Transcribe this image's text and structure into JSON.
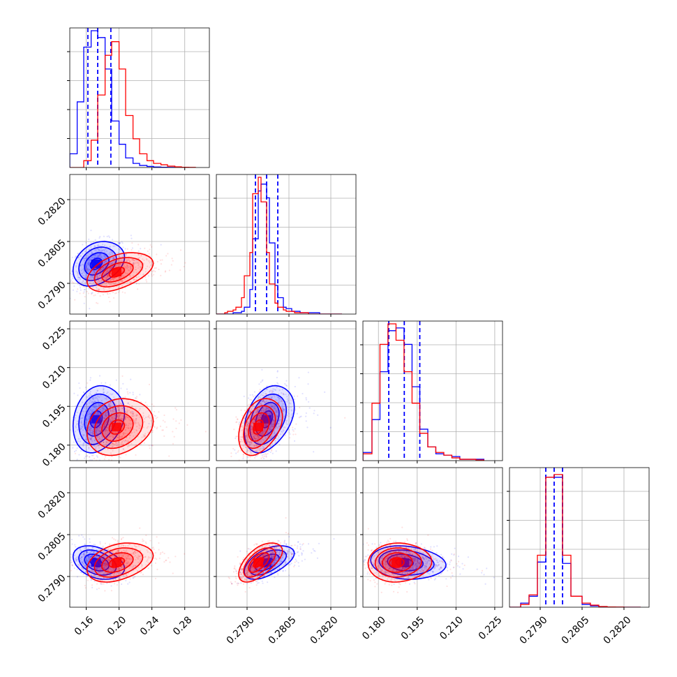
{
  "chart_data": {
    "type": "corner",
    "description_colors": {
      "blue": "#0000ff",
      "red": "#ff0000"
    },
    "grid": true,
    "legend": "none",
    "parameters": [
      {
        "range": [
          0.14,
          0.31
        ],
        "ticks": [
          0.16,
          0.2,
          0.24,
          0.28
        ],
        "tick_labels": [
          "0.16",
          "0.20",
          "0.24",
          "0.28"
        ]
      },
      {
        "range": [
          0.2779,
          0.2829
        ],
        "ticks": [
          0.279,
          0.2805,
          0.282
        ],
        "tick_labels": [
          "0.2790",
          "0.2805",
          "0.2820"
        ]
      },
      {
        "range": [
          0.174,
          0.228
        ],
        "ticks": [
          0.18,
          0.195,
          0.21,
          0.225
        ],
        "tick_labels": [
          "0.180",
          "0.195",
          "0.210",
          "0.225"
        ]
      },
      {
        "range": [
          0.2779,
          0.2829
        ],
        "ticks": [
          0.279,
          0.2805,
          0.282
        ],
        "tick_labels": [
          "0.2790",
          "0.2805",
          "0.2820"
        ]
      }
    ],
    "series": [
      {
        "color": "#0000ff",
        "means": [
          0.172,
          0.2797,
          0.19,
          0.2795
        ],
        "sigmas": [
          0.014,
          0.0004,
          0.0065,
          0.0003
        ],
        "correlations": [
          [
            0,
            1,
            0.3
          ],
          [
            0,
            2,
            0.2
          ],
          [
            0,
            3,
            -0.35
          ],
          [
            1,
            2,
            0.35
          ],
          [
            1,
            3,
            0.55
          ],
          [
            2,
            3,
            -0.15
          ]
        ],
        "quantiles": [
          [
            0.162,
            0.174,
            0.19
          ],
          [
            0.2793,
            0.2797,
            0.2801
          ],
          [
            0.184,
            0.19,
            0.196
          ],
          [
            0.2792,
            0.2795,
            0.2798
          ]
        ],
        "histograms": [
          {
            "edges": [
              0.14,
              0.149,
              0.157,
              0.166,
              0.174,
              0.183,
              0.191,
              0.2,
              0.208,
              0.217,
              0.225,
              0.234,
              0.242,
              0.251,
              0.259,
              0.268
            ],
            "counts": [
              0.1,
              0.48,
              0.88,
              1.0,
              0.95,
              0.72,
              0.34,
              0.17,
              0.07,
              0.03,
              0.015,
              0.008,
              0.004,
              0.002,
              0.001
            ]
          },
          {
            "edges": [
              0.2779,
              0.278,
              0.2782,
              0.2783,
              0.2785,
              0.2786,
              0.2788,
              0.2789,
              0.2791,
              0.2792,
              0.2794,
              0.2795,
              0.2797,
              0.2798,
              0.28,
              0.2801,
              0.2803,
              0.2804,
              0.2806,
              0.2807,
              0.2809,
              0.2812,
              0.2816,
              0.2824
            ],
            "counts": [
              0.0,
              0.0,
              0.0,
              0.0,
              0.01,
              0.01,
              0.02,
              0.05,
              0.18,
              0.55,
              0.9,
              0.95,
              0.85,
              0.52,
              0.21,
              0.12,
              0.05,
              0.04,
              0.02,
              0.02,
              0.01,
              0.01,
              0.0
            ]
          },
          {
            "edges": [
              0.174,
              0.1775,
              0.1806,
              0.1837,
              0.1868,
              0.1899,
              0.193,
              0.196,
              0.1991,
              0.2022,
              0.2053,
              0.2084,
              0.2115,
              0.2146,
              0.2177,
              0.2208
            ],
            "counts": [
              0.06,
              0.3,
              0.65,
              0.95,
              0.97,
              0.85,
              0.54,
              0.23,
              0.1,
              0.05,
              0.04,
              0.03,
              0.01,
              0.01,
              0.01
            ]
          },
          {
            "edges": [
              0.2779,
              0.2783,
              0.2786,
              0.2789,
              0.2792,
              0.2795,
              0.2798,
              0.2801,
              0.2805,
              0.2808,
              0.2811,
              0.2814,
              0.2817,
              0.282,
              0.2826
            ],
            "counts": [
              0.0,
              0.03,
              0.08,
              0.33,
              0.95,
              0.95,
              0.32,
              0.08,
              0.02,
              0.01,
              0.0,
              0.0,
              0.0,
              0.0
            ]
          }
        ]
      },
      {
        "color": "#ff0000",
        "means": [
          0.197,
          0.2794,
          0.187,
          0.2795
        ],
        "sigmas": [
          0.018,
          0.00035,
          0.0055,
          0.00035
        ],
        "correlations": [
          [
            0,
            1,
            0.45
          ],
          [
            0,
            2,
            0.2
          ],
          [
            0,
            3,
            0.35
          ],
          [
            1,
            2,
            0.35
          ],
          [
            1,
            3,
            0.6
          ],
          [
            2,
            3,
            0.05
          ]
        ],
        "histograms": [
          {
            "edges": [
              0.14,
              0.149,
              0.157,
              0.166,
              0.174,
              0.183,
              0.191,
              0.2,
              0.208,
              0.217,
              0.225,
              0.234,
              0.242,
              0.251,
              0.259,
              0.268,
              0.276,
              0.285,
              0.293
            ],
            "counts": [
              0.0,
              0.0,
              0.05,
              0.2,
              0.53,
              0.82,
              0.92,
              0.72,
              0.38,
              0.21,
              0.1,
              0.05,
              0.03,
              0.02,
              0.01,
              0.005,
              0.002,
              0.001
            ]
          },
          {
            "edges": [
              0.2779,
              0.278,
              0.2782,
              0.2783,
              0.2785,
              0.2786,
              0.2788,
              0.2789,
              0.2791,
              0.2792,
              0.2794,
              0.2795,
              0.2797,
              0.2798,
              0.28,
              0.2801,
              0.2803,
              0.2804,
              0.2806,
              0.2807,
              0.2809,
              0.2812,
              0.2816,
              0.2824
            ],
            "counts": [
              0.0,
              0.0,
              0.01,
              0.02,
              0.03,
              0.05,
              0.12,
              0.28,
              0.45,
              0.88,
              1.0,
              0.82,
              0.45,
              0.22,
              0.08,
              0.05,
              0.03,
              0.02,
              0.02,
              0.01,
              0.01,
              0.0,
              0.0
            ]
          },
          {
            "edges": [
              0.174,
              0.1775,
              0.1806,
              0.1837,
              0.1868,
              0.1899,
              0.193,
              0.196,
              0.1991,
              0.2022,
              0.2053,
              0.2084,
              0.2115,
              0.2146,
              0.2177,
              0.2208
            ],
            "counts": [
              0.05,
              0.42,
              0.85,
              1.0,
              0.88,
              0.65,
              0.42,
              0.2,
              0.1,
              0.06,
              0.04,
              0.02,
              0.01,
              0.01,
              0.005
            ]
          },
          {
            "edges": [
              0.2779,
              0.2783,
              0.2786,
              0.2789,
              0.2792,
              0.2795,
              0.2798,
              0.2801,
              0.2805,
              0.2808,
              0.2811,
              0.2814,
              0.2817,
              0.282,
              0.2826
            ],
            "counts": [
              0.0,
              0.02,
              0.09,
              0.38,
              0.95,
              0.97,
              0.38,
              0.08,
              0.03,
              0.015,
              0.005,
              0.002,
              0.001,
              0.0
            ]
          }
        ]
      }
    ]
  }
}
